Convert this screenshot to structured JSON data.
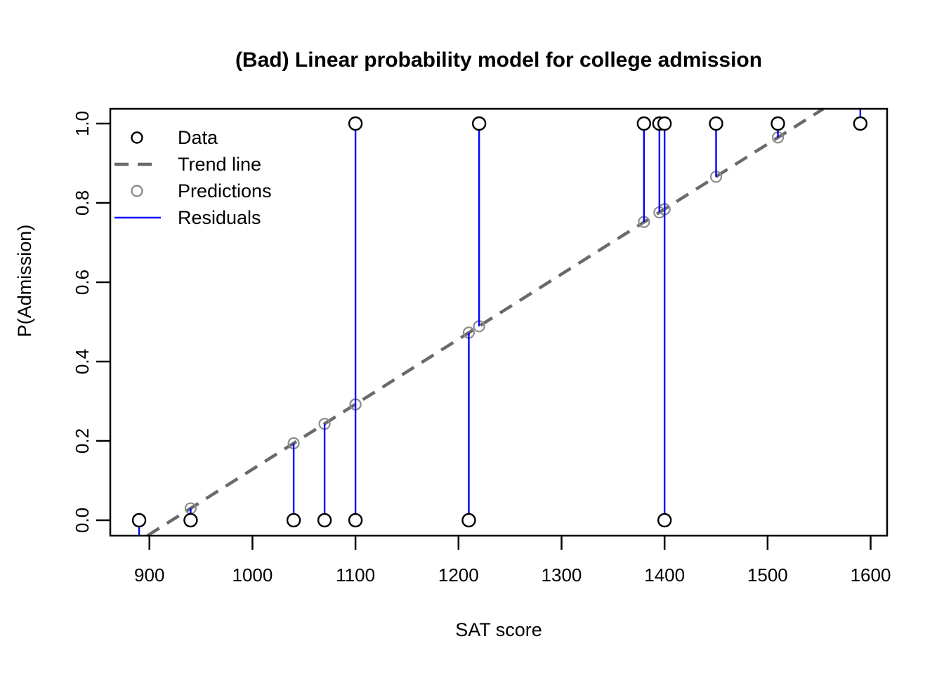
{
  "chart_data": {
    "type": "scatter",
    "title": "(Bad) Linear probability model for college admission",
    "xlabel": "SAT score",
    "ylabel": "P(Admission)",
    "x_ticks": [
      900,
      1000,
      1100,
      1200,
      1300,
      1400,
      1500,
      1600
    ],
    "x_tick_labels": [
      "900",
      "1000",
      "1100",
      "1200",
      "1300",
      "1400",
      "1500",
      "1600"
    ],
    "y_ticks": [
      0.0,
      0.2,
      0.4,
      0.6,
      0.8,
      1.0
    ],
    "y_tick_labels": [
      "0.0",
      "0.2",
      "0.4",
      "0.6",
      "0.8",
      "1.0"
    ],
    "xlim": [
      862,
      1616
    ],
    "ylim": [
      -0.04,
      1.04
    ],
    "grid": false,
    "colors": {
      "data": "#000000",
      "trend": "#6a6a6a",
      "predictions": "#8c8c8c",
      "residuals": "#0000ff",
      "axis": "#000000",
      "background": "#ffffff"
    },
    "legend": {
      "position": "top-left",
      "items": [
        {
          "label": "Data",
          "marker": "open-circle",
          "color": "#000000"
        },
        {
          "label": "Trend line",
          "marker": "dashed-line",
          "color": "#6a6a6a"
        },
        {
          "label": "Predictions",
          "marker": "open-circle",
          "color": "#8c8c8c"
        },
        {
          "label": "Residuals",
          "marker": "solid-line",
          "color": "#0000ff"
        }
      ]
    },
    "trend_line": {
      "style": "dashed",
      "slope": 0.00164,
      "intercept": -1.5116,
      "color": "#6a6a6a"
    },
    "residuals": {
      "color": "#0000ff",
      "connects": "data-to-prediction",
      "clipped_to_plot": true
    },
    "points": [
      {
        "sat": 890,
        "admitted": 0,
        "predicted": -0.052
      },
      {
        "sat": 940,
        "admitted": 0,
        "predicted": 0.03
      },
      {
        "sat": 1040,
        "admitted": 0,
        "predicted": 0.194
      },
      {
        "sat": 1070,
        "admitted": 0,
        "predicted": 0.243
      },
      {
        "sat": 1100,
        "admitted": 0,
        "predicted": 0.292
      },
      {
        "sat": 1100,
        "admitted": 1,
        "predicted": 0.292
      },
      {
        "sat": 1210,
        "admitted": 0,
        "predicted": 0.473
      },
      {
        "sat": 1220,
        "admitted": 1,
        "predicted": 0.489
      },
      {
        "sat": 1380,
        "admitted": 1,
        "predicted": 0.752
      },
      {
        "sat": 1395,
        "admitted": 1,
        "predicted": 0.776
      },
      {
        "sat": 1400,
        "admitted": 0,
        "predicted": 0.784
      },
      {
        "sat": 1400,
        "admitted": 1,
        "predicted": 0.784
      },
      {
        "sat": 1450,
        "admitted": 1,
        "predicted": 0.866
      },
      {
        "sat": 1510,
        "admitted": 1,
        "predicted": 0.965
      },
      {
        "sat": 1590,
        "admitted": 1,
        "predicted": 1.096
      }
    ]
  }
}
